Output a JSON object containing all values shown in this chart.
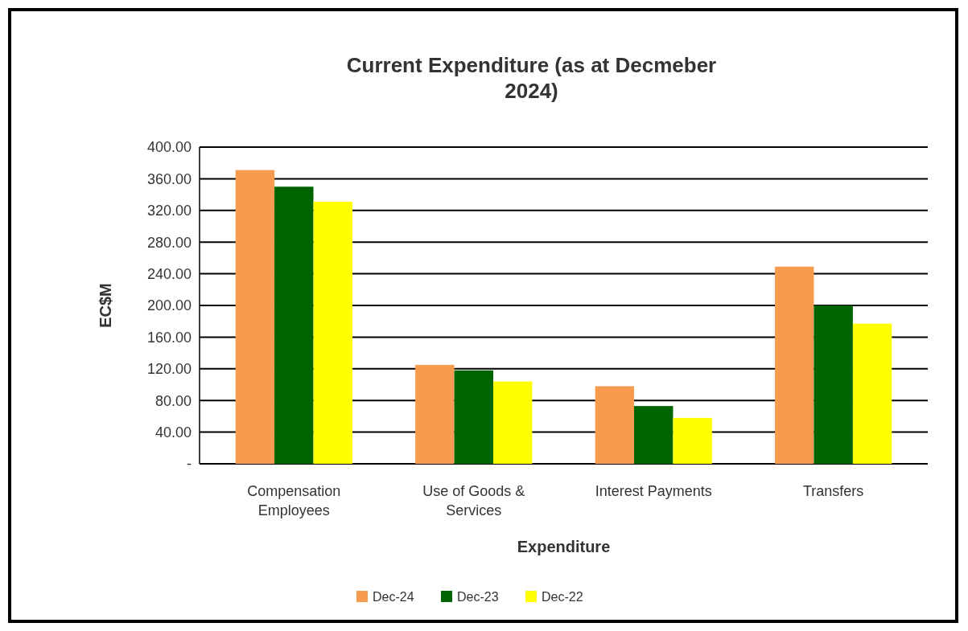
{
  "chart_data": {
    "type": "bar",
    "title": "Current Expenditure (as at Decmeber 2024)",
    "xlabel": "Expenditure",
    "ylabel": "EC$M",
    "categories": [
      [
        "Compensation",
        "Employees"
      ],
      [
        "Use of Goods &",
        "Services"
      ],
      [
        "Interest Payments"
      ],
      [
        "Transfers"
      ]
    ],
    "series": [
      {
        "name": "Dec-24",
        "color": "#f79b4f",
        "values": [
          371,
          125,
          98,
          249
        ]
      },
      {
        "name": "Dec-23",
        "color": "#006400",
        "values": [
          350,
          118,
          73,
          200
        ]
      },
      {
        "name": "Dec-22",
        "color": "#ffff00",
        "values": [
          331,
          104,
          58,
          177
        ]
      }
    ],
    "ylim": [
      0,
      400
    ],
    "yticks": [
      {
        "value": 0,
        "label": "-"
      },
      {
        "value": 40,
        "label": "40.00"
      },
      {
        "value": 80,
        "label": "80.00"
      },
      {
        "value": 120,
        "label": "120.00"
      },
      {
        "value": 160,
        "label": "160.00"
      },
      {
        "value": 200,
        "label": "200.00"
      },
      {
        "value": 240,
        "label": "240.00"
      },
      {
        "value": 280,
        "label": "280.00"
      },
      {
        "value": 320,
        "label": "320.00"
      },
      {
        "value": 360,
        "label": "360.00"
      },
      {
        "value": 400,
        "label": "400.00"
      }
    ],
    "grid": "y",
    "legend": "bottom"
  }
}
